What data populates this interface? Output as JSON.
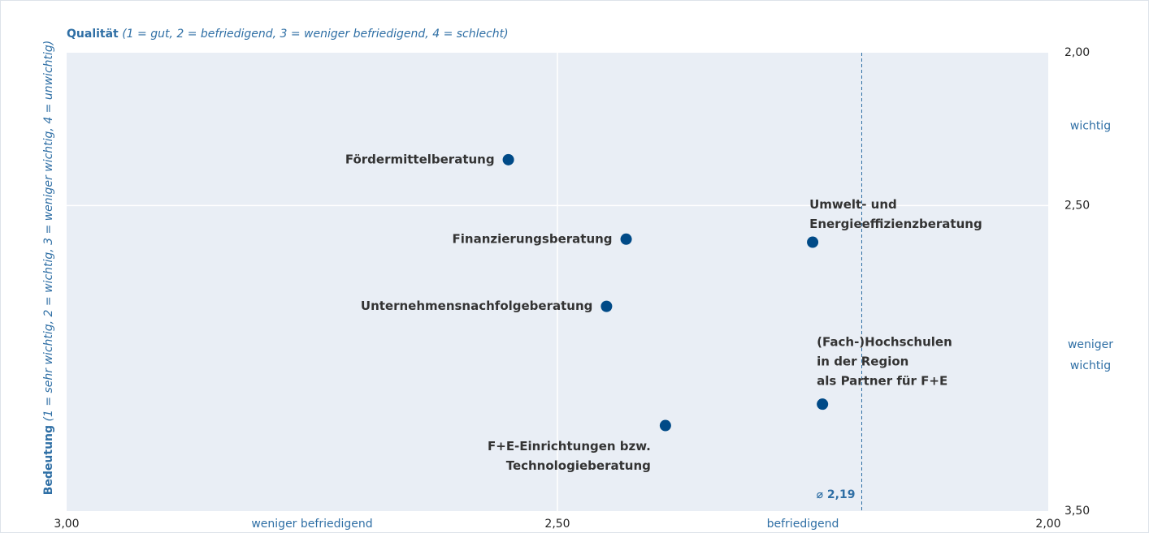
{
  "chart_data": {
    "type": "scatter",
    "x_title": {
      "bold": "Qualität",
      "italic": "(1 = gut, 2 = befriedigend, 3 = weniger befriedigend, 4 = schlecht)"
    },
    "y_title": {
      "bold": "Bedeutung",
      "italic": "(1 = sehr wichtig, 2 = wichtig, 3 = weniger wichtig, 4 = unwichtig)"
    },
    "xlim": [
      3.0,
      2.0
    ],
    "xticks": [
      {
        "value": 3.0,
        "label": "3,00"
      },
      {
        "value": 2.5,
        "label": "2,50"
      },
      {
        "value": 2.0,
        "label": "2,00"
      }
    ],
    "ylim": [
      2.0,
      3.5
    ],
    "yticks": [
      {
        "value": 2.0,
        "label": "2,00"
      },
      {
        "value": 2.5,
        "label": "2,50"
      },
      {
        "value": 3.5,
        "label": "3,50"
      }
    ],
    "x_regions": [
      {
        "value": 2.75,
        "label": [
          "weniger befriedigend"
        ]
      },
      {
        "value": 2.25,
        "label": [
          "befriedigend"
        ]
      }
    ],
    "y_regions": [
      {
        "value": 2.24,
        "label": [
          "wichtig"
        ]
      },
      {
        "value": 2.99,
        "label": [
          "weniger",
          "wichtig"
        ]
      }
    ],
    "mean": {
      "value": 2.19,
      "label": "⌀ 2,19"
    },
    "color": "#004a87",
    "points": [
      {
        "label": [
          "Fördermittelberatung"
        ],
        "x": 2.55,
        "y": 2.35
      },
      {
        "label": [
          "Finanzierungsberatung"
        ],
        "x": 2.43,
        "y": 2.61
      },
      {
        "label": [
          "Unternehmensnachfolgeberatung"
        ],
        "x": 2.45,
        "y": 2.83
      },
      {
        "label": [
          "F+E-Einrichtungen bzw.",
          "Technologieberatung"
        ],
        "x": 2.39,
        "y": 3.22
      },
      {
        "label": [
          "Umwelt- und",
          "Energieeffizienzberatung"
        ],
        "x": 2.24,
        "y": 2.62
      },
      {
        "label": [
          "(Fach-)Hochschulen",
          "in der Region",
          "als Partner für F+E"
        ],
        "x": 2.23,
        "y": 3.15
      }
    ]
  }
}
